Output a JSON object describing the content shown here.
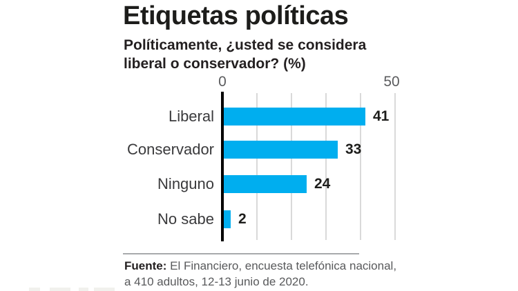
{
  "header": {
    "title": "Etiquetas políticas",
    "subtitle_line1": "Políticamente, ¿usted se considera",
    "subtitle_line2": "liberal o conservador? (%)"
  },
  "chart_data": {
    "type": "bar",
    "orientation": "horizontal",
    "title": "Etiquetas políticas",
    "subtitle": "Políticamente, ¿usted se considera liberal o conservador? (%)",
    "categories": [
      "Liberal",
      "Conservador",
      "Ninguno",
      "No sabe"
    ],
    "values": [
      41,
      33,
      24,
      2
    ],
    "xlim": [
      0,
      50
    ],
    "xticks": [
      "0",
      "50"
    ],
    "gridline_interval": 10,
    "grid": true,
    "legend": false,
    "bar_color": "#00AEEF",
    "axis_color": "#000000",
    "gridline_color": "#d9d9d9",
    "value_label_color": "#1d1d1b",
    "category_label_color": "#3a3a3c"
  },
  "footer": {
    "source_bold": "Fuente:",
    "source_line1": " El Financiero, encuesta telefónica nacional,",
    "source_line2": "a 410 adultos, 12-13 junio de 2020."
  }
}
